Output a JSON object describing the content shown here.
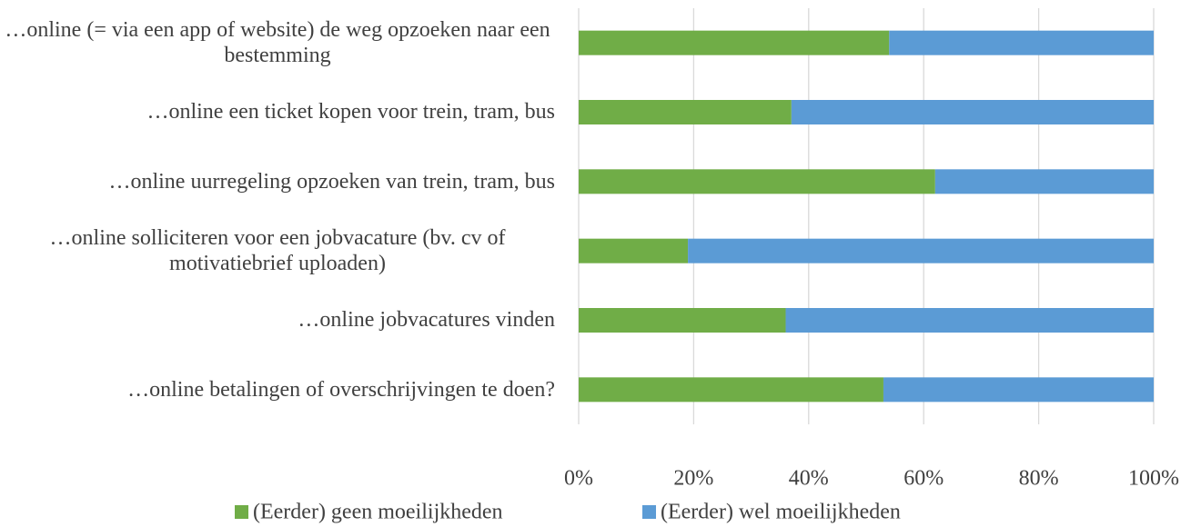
{
  "chart_data": {
    "type": "stacked_barh",
    "categories": [
      "…online (= via een app of website) de weg opzoeken naar een bestemming",
      "…online een ticket kopen voor trein, tram, bus",
      "…online uurregeling opzoeken van trein, tram, bus",
      "…online solliciteren voor een jobvacature (bv. cv of motivatiebrief uploaden)",
      "…online jobvacatures vinden",
      "…online betalingen of overschrijvingen te doen?"
    ],
    "series": [
      {
        "name": "(Eerder) geen moeilijkheden",
        "color": "#70ad47",
        "values": [
          54,
          37,
          62,
          19,
          36,
          53
        ]
      },
      {
        "name": "(Eerder) wel moeilijkheden",
        "color": "#5b9bd5",
        "values": [
          46,
          63,
          38,
          81,
          64,
          47
        ]
      }
    ],
    "xlim": [
      0,
      100
    ],
    "xticks": [
      {
        "value": 0,
        "label": "0%"
      },
      {
        "value": 20,
        "label": "20%"
      },
      {
        "value": 40,
        "label": "40%"
      },
      {
        "value": 60,
        "label": "60%"
      },
      {
        "value": 80,
        "label": "80%"
      },
      {
        "value": 100,
        "label": "100%"
      }
    ],
    "grid": true,
    "legend": "bottom"
  }
}
